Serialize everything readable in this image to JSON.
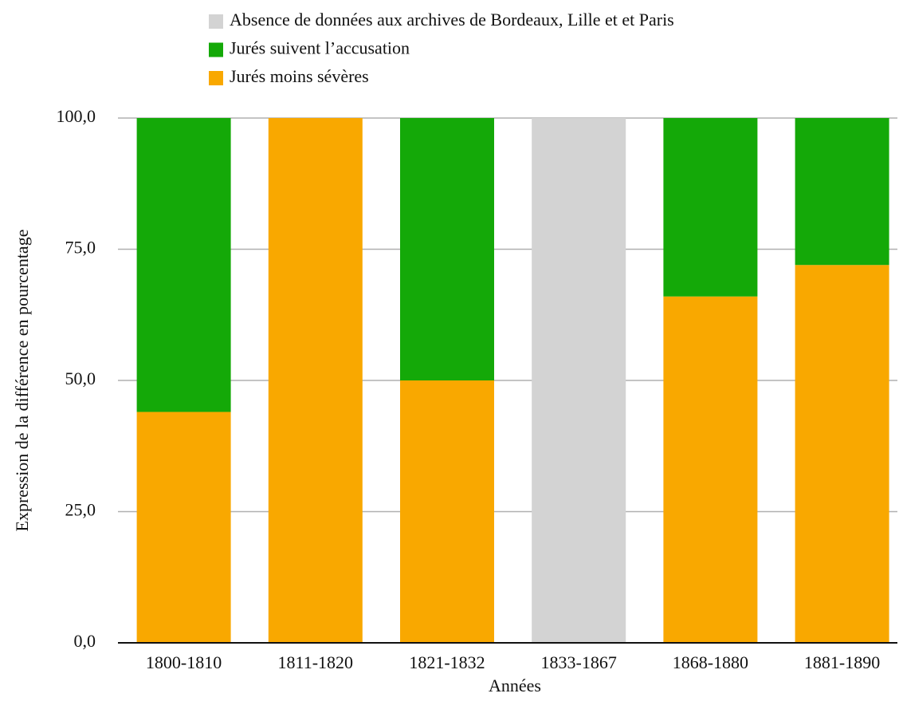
{
  "chart_data": {
    "type": "stacked_bar",
    "xlabel": "Années",
    "ylabel": "Expression de la différence en pourcentage",
    "categories": [
      "1800-1810",
      "1811-1820",
      "1821-1832",
      "1833-1867",
      "1868-1880",
      "1881-1890"
    ],
    "series": [
      {
        "name": "Jurés moins sévères",
        "color": "#f9a800",
        "values": [
          44,
          100,
          50,
          0,
          66,
          72
        ]
      },
      {
        "name": "Jurés suivent l’accusation",
        "color": "#14a908",
        "values": [
          56,
          0,
          50,
          0,
          34,
          28
        ]
      },
      {
        "name": "Absence de données aux archives de Bordeaux, Lille et et Paris",
        "color": "#d3d3d3",
        "values": [
          0,
          0,
          0,
          100,
          0,
          0
        ]
      }
    ],
    "ylim": [
      0,
      100
    ],
    "yticks": [
      {
        "value": 0,
        "label": "0,0"
      },
      {
        "value": 25,
        "label": "25,0"
      },
      {
        "value": 50,
        "label": "50,0"
      },
      {
        "value": 75,
        "label": "75,0"
      },
      {
        "value": 100,
        "label": "100,0"
      }
    ],
    "grid": true,
    "legend": "top"
  }
}
